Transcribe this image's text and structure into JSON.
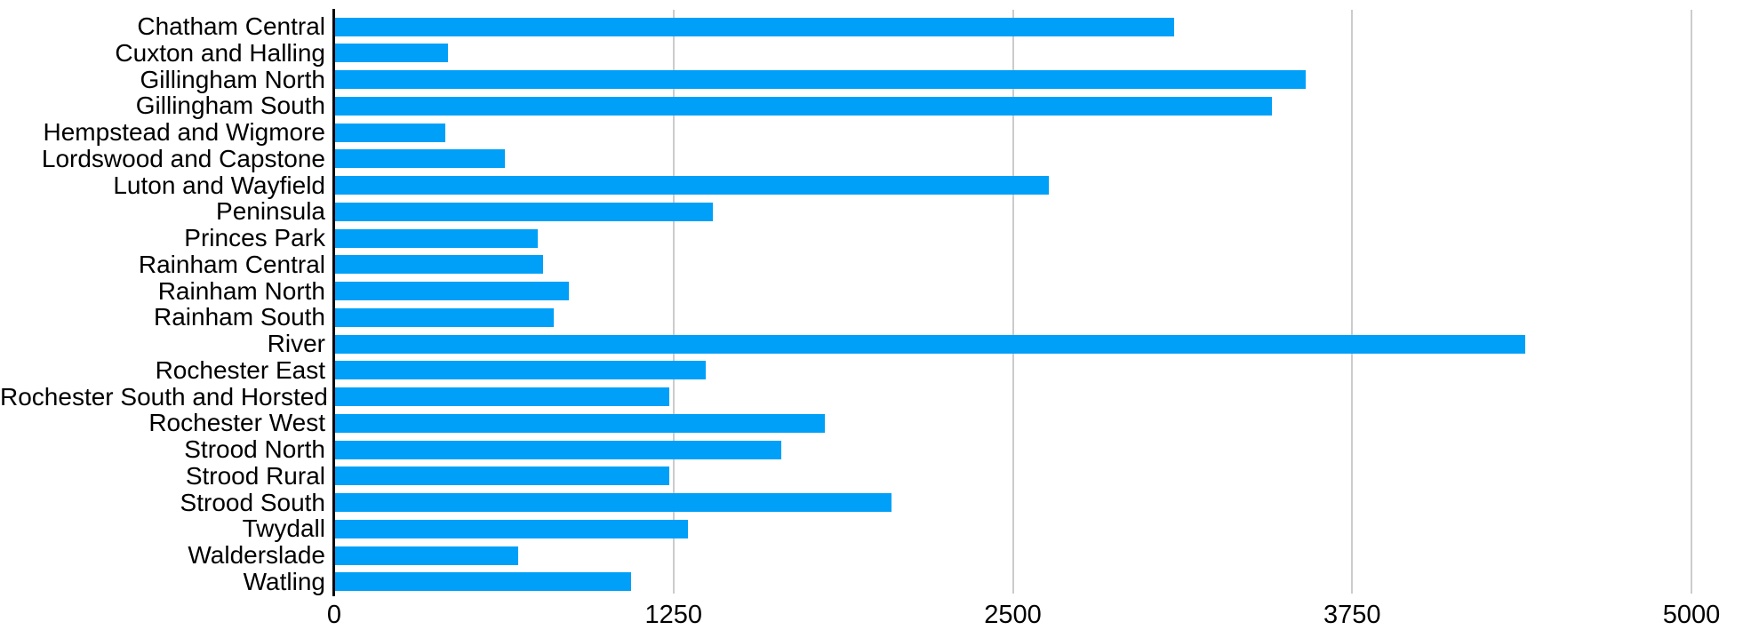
{
  "chart_data": {
    "type": "bar",
    "orientation": "horizontal",
    "title": "",
    "xlabel": "",
    "ylabel": "",
    "categories": [
      "Chatham Central",
      "Cuxton and Halling",
      "Gillingham North",
      "Gillingham South",
      "Hempstead and Wigmore",
      "Lordswood and Capstone",
      "Luton and Wayfield",
      "Peninsula",
      "Princes Park",
      "Rainham Central",
      "Rainham North",
      "Rainham South",
      "River",
      "Rochester East",
      "Rochester South and Horsted",
      "Rochester West",
      "Strood North",
      "Strood Rural",
      "Strood South",
      "Twydall",
      "Walderslade",
      "Watling"
    ],
    "values": [
      3090,
      415,
      3575,
      3450,
      405,
      625,
      2630,
      1390,
      745,
      765,
      860,
      805,
      4385,
      1365,
      1230,
      1805,
      1645,
      1230,
      2050,
      1300,
      675,
      1090
    ],
    "xlim": [
      0,
      5000
    ],
    "x_ticks": [
      0,
      1250,
      2500,
      3750,
      5000
    ],
    "x_tick_labels": [
      "0",
      "1250",
      "2500",
      "3750",
      "5000"
    ],
    "grid": "vertical-gridlines-behind-bars",
    "legend": "none",
    "colors": {
      "bar": "#00A0F8",
      "gridline": "#cccccc",
      "axis_line": "#000000",
      "text": "#000000"
    }
  }
}
